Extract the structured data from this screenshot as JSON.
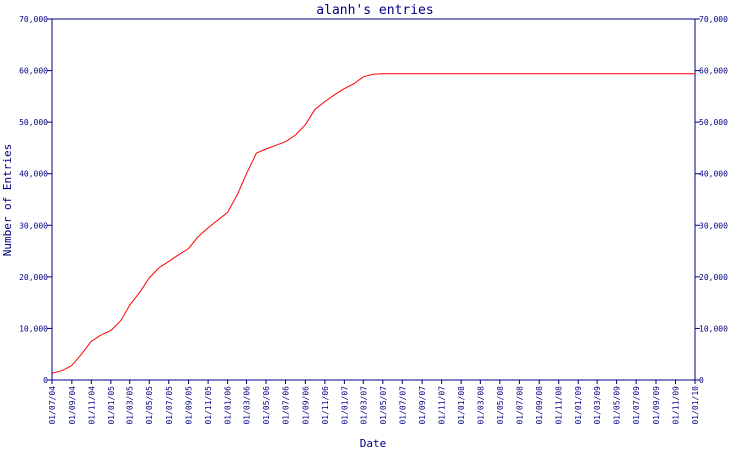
{
  "chart_data": {
    "type": "line",
    "title": "alanh's entries",
    "xlabel": "Date",
    "ylabel": "Number of Entries",
    "ylim": [
      0,
      70000
    ],
    "grid": false,
    "legend": "none",
    "y_ticks": [
      0,
      10000,
      20000,
      30000,
      40000,
      50000,
      60000,
      70000
    ],
    "y_tick_labels": [
      "0",
      "10,000",
      "20,000",
      "30,000",
      "40,000",
      "50,000",
      "60,000",
      "70,000"
    ],
    "x_tick_labels": [
      "01/07/04",
      "01/09/04",
      "01/11/04",
      "01/01/05",
      "01/03/05",
      "01/05/05",
      "01/07/05",
      "01/09/05",
      "01/11/05",
      "01/01/06",
      "01/03/06",
      "01/05/06",
      "01/07/06",
      "01/09/06",
      "01/11/06",
      "01/01/07",
      "01/03/07",
      "01/05/07",
      "01/07/07",
      "01/09/07",
      "01/11/07",
      "01/01/08",
      "01/03/08",
      "01/05/08",
      "01/07/08",
      "01/09/08",
      "01/11/08",
      "01/01/09",
      "01/03/09",
      "01/05/09",
      "01/07/09",
      "01/09/09",
      "01/11/09",
      "01/01/10"
    ],
    "series": [
      {
        "color": "#ff0000",
        "x": [
          "01/07/04",
          "01/08/04",
          "01/09/04",
          "01/10/04",
          "01/11/04",
          "01/12/04",
          "01/01/05",
          "01/02/05",
          "01/03/05",
          "01/04/05",
          "01/05/05",
          "01/06/05",
          "01/07/05",
          "01/08/05",
          "01/09/05",
          "01/10/05",
          "01/11/05",
          "01/12/05",
          "01/01/06",
          "01/02/06",
          "01/03/06",
          "01/04/06",
          "01/05/06",
          "01/06/06",
          "01/07/06",
          "01/08/06",
          "01/09/06",
          "01/10/06",
          "01/11/06",
          "01/12/06",
          "01/01/07",
          "01/02/07",
          "01/03/07",
          "01/04/07",
          "01/05/07",
          "01/07/07",
          "01/01/08",
          "01/07/08",
          "01/01/09",
          "01/07/09",
          "01/01/10"
        ],
        "values": [
          1300,
          1800,
          2800,
          5000,
          7500,
          8700,
          9600,
          11500,
          14500,
          17000,
          19800,
          21800,
          23000,
          24300,
          25500,
          27800,
          29500,
          31000,
          32500,
          36000,
          40000,
          44000,
          44800,
          45500,
          46200,
          47500,
          49500,
          52500,
          54000,
          55300,
          56500,
          57500,
          58800,
          59300,
          59400,
          59400,
          59400,
          59400,
          59400,
          59400,
          59400
        ]
      }
    ]
  }
}
